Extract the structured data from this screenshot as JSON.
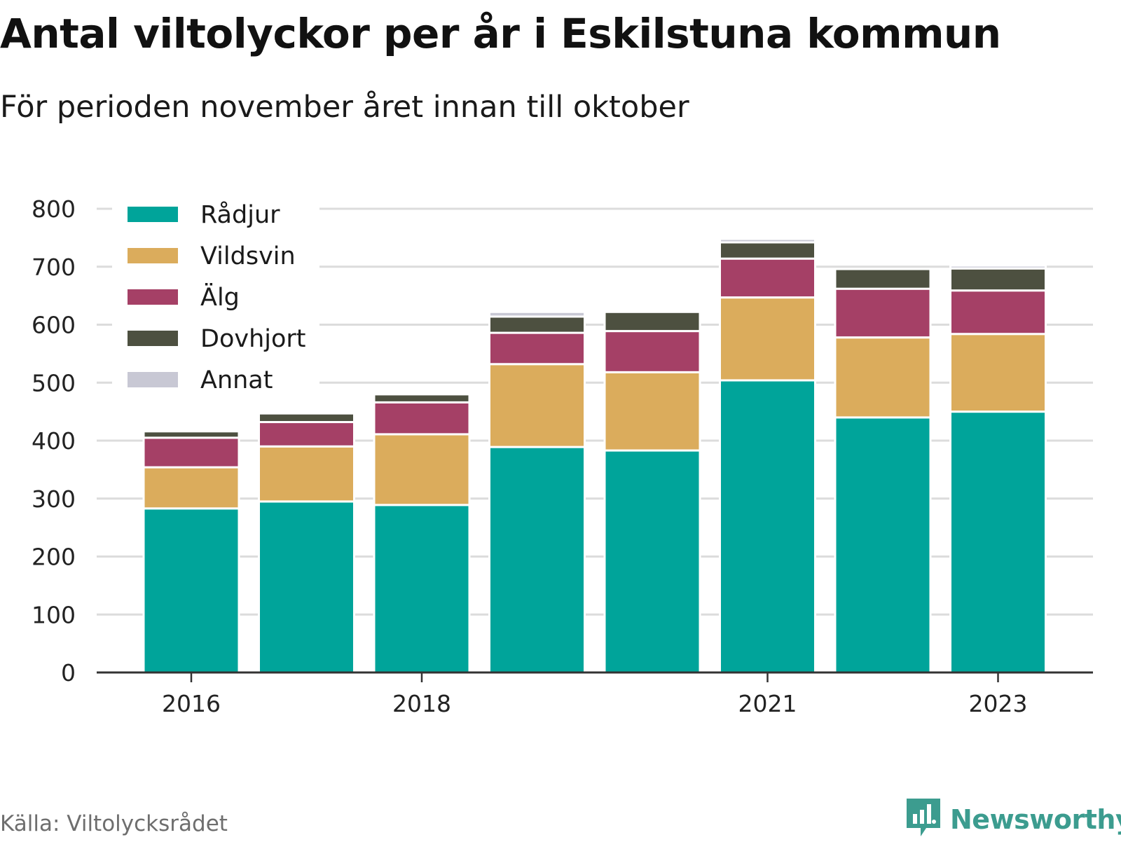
{
  "title": "Antal viltolyckor per år i Eskilstuna kommun",
  "subtitle": "För perioden november året innan till oktober",
  "source": "Källa: Viltolycksrådet",
  "brand": {
    "name": "Newsworthy",
    "icon": "bar-chart-speech-bubble-icon",
    "color": "#3c9c8f"
  },
  "chart_data": {
    "type": "bar",
    "stacked": true,
    "categories": [
      "2016",
      "2017",
      "2018",
      "2019",
      "2020",
      "2021",
      "2022",
      "2023"
    ],
    "x_tick_labels": [
      "2016",
      "",
      "2018",
      "",
      "",
      "2021",
      "",
      "2023"
    ],
    "ylim": [
      0,
      800
    ],
    "y_ticks": [
      "0",
      "100",
      "200",
      "300",
      "400",
      "500",
      "600",
      "700",
      "800"
    ],
    "grid": true,
    "legend_position": "top-left",
    "series": [
      {
        "name": "Rådjur",
        "color": "#00a49a",
        "values": [
          283,
          295,
          289,
          389,
          383,
          504,
          440,
          450
        ]
      },
      {
        "name": "Vildsvin",
        "color": "#dbac5c",
        "values": [
          71,
          95,
          122,
          143,
          135,
          143,
          138,
          134
        ]
      },
      {
        "name": "Älg",
        "color": "#a54066",
        "values": [
          51,
          42,
          55,
          54,
          71,
          67,
          84,
          75
        ]
      },
      {
        "name": "Dovhjort",
        "color": "#4d5040",
        "values": [
          11,
          15,
          14,
          28,
          33,
          28,
          34,
          38
        ]
      },
      {
        "name": "Annat",
        "color": "#c8c8d4",
        "values": [
          0,
          2,
          3,
          8,
          0,
          6,
          0,
          5
        ]
      }
    ]
  }
}
